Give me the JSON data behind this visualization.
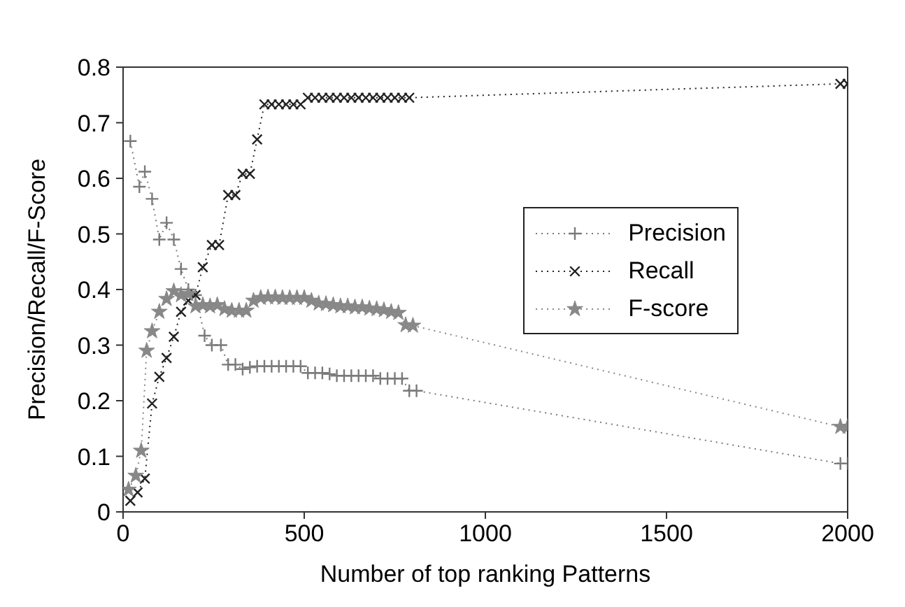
{
  "chart_data": {
    "type": "line",
    "xlabel": "Number of top ranking Patterns",
    "ylabel": "Precision/Recall/F-Score",
    "xlim": [
      0,
      2000
    ],
    "ylim": [
      0,
      0.8
    ],
    "xticks": [
      0,
      500,
      1000,
      1500,
      2000
    ],
    "yticks": [
      0,
      0.1,
      0.2,
      0.3,
      0.4,
      0.5,
      0.6,
      0.7,
      0.8
    ],
    "grid": false,
    "legend": "right",
    "line_style": "dotted",
    "series": [
      {
        "name": "Precision",
        "color": "#7a7a7a",
        "marker": "plus",
        "x": [
          20,
          45,
          60,
          80,
          100,
          120,
          140,
          160,
          180,
          200,
          225,
          245,
          270,
          290,
          310,
          330,
          350,
          370,
          390,
          410,
          430,
          450,
          470,
          490,
          510,
          530,
          550,
          570,
          590,
          610,
          630,
          650,
          670,
          690,
          710,
          730,
          750,
          770,
          790,
          810,
          1980,
          2000
        ],
        "values": [
          0.667,
          0.585,
          0.612,
          0.563,
          0.49,
          0.52,
          0.49,
          0.437,
          0.4,
          0.39,
          0.317,
          0.3,
          0.3,
          0.265,
          0.265,
          0.257,
          0.26,
          0.262,
          0.262,
          0.262,
          0.262,
          0.262,
          0.262,
          0.262,
          0.25,
          0.25,
          0.25,
          0.248,
          0.245,
          0.245,
          0.245,
          0.245,
          0.245,
          0.245,
          0.24,
          0.24,
          0.24,
          0.24,
          0.218,
          0.218,
          0.087,
          0.087
        ]
      },
      {
        "name": "Recall",
        "color": "#222222",
        "marker": "cross",
        "x": [
          20,
          40,
          60,
          80,
          100,
          120,
          140,
          160,
          180,
          200,
          220,
          245,
          265,
          290,
          310,
          330,
          350,
          370,
          390,
          410,
          430,
          450,
          470,
          490,
          510,
          530,
          550,
          570,
          590,
          610,
          630,
          650,
          670,
          690,
          710,
          730,
          750,
          770,
          790,
          1980,
          2000
        ],
        "values": [
          0.02,
          0.035,
          0.06,
          0.195,
          0.243,
          0.277,
          0.315,
          0.36,
          0.38,
          0.39,
          0.44,
          0.48,
          0.48,
          0.57,
          0.57,
          0.608,
          0.608,
          0.67,
          0.733,
          0.733,
          0.733,
          0.733,
          0.733,
          0.733,
          0.745,
          0.745,
          0.745,
          0.745,
          0.745,
          0.745,
          0.745,
          0.745,
          0.745,
          0.745,
          0.745,
          0.745,
          0.745,
          0.745,
          0.745,
          0.77,
          0.77
        ]
      },
      {
        "name": "F-score",
        "color": "#888888",
        "marker": "star",
        "x": [
          15,
          35,
          50,
          65,
          80,
          100,
          120,
          140,
          160,
          180,
          200,
          220,
          240,
          260,
          280,
          300,
          320,
          340,
          360,
          380,
          400,
          420,
          440,
          460,
          480,
          500,
          520,
          540,
          560,
          580,
          600,
          620,
          640,
          660,
          680,
          700,
          720,
          740,
          760,
          780,
          800,
          1980,
          2000
        ],
        "values": [
          0.04,
          0.065,
          0.11,
          0.29,
          0.325,
          0.36,
          0.383,
          0.397,
          0.39,
          0.392,
          0.37,
          0.372,
          0.37,
          0.372,
          0.365,
          0.362,
          0.362,
          0.362,
          0.38,
          0.385,
          0.386,
          0.386,
          0.385,
          0.385,
          0.385,
          0.385,
          0.38,
          0.375,
          0.374,
          0.372,
          0.37,
          0.37,
          0.368,
          0.368,
          0.366,
          0.365,
          0.363,
          0.36,
          0.358,
          0.336,
          0.335,
          0.153,
          0.153
        ]
      }
    ]
  }
}
